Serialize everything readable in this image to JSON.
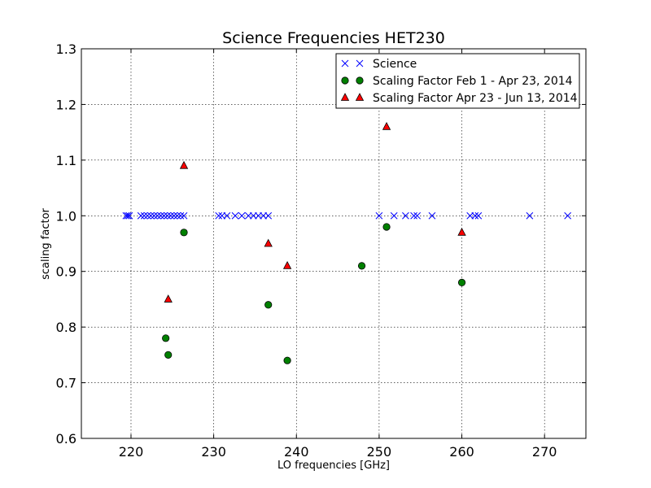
{
  "chart_data": {
    "type": "scatter",
    "title": "Science Frequencies HET230",
    "xlabel": "LO frequencies [GHz]",
    "ylabel": "scaling factor",
    "xlim": [
      214,
      275
    ],
    "ylim": [
      0.6,
      1.3
    ],
    "xticks": [
      220,
      230,
      240,
      250,
      260,
      270
    ],
    "yticks": [
      0.6,
      0.7,
      0.8,
      0.9,
      1.0,
      1.1,
      1.2,
      1.3
    ],
    "xtick_labels": [
      "220",
      "230",
      "240",
      "250",
      "260",
      "270"
    ],
    "ytick_labels": [
      "0.6",
      "0.7",
      "0.8",
      "0.9",
      "1.0",
      "1.1",
      "1.2",
      "1.3"
    ],
    "grid": true,
    "legend_position": "top-right",
    "series": [
      {
        "name": "Science",
        "marker": "x",
        "color": "#0000ff",
        "x": [
          219.4,
          219.6,
          219.8,
          221.2,
          221.6,
          222.0,
          222.4,
          222.8,
          223.2,
          223.6,
          224.0,
          224.4,
          224.8,
          225.2,
          225.6,
          226.0,
          226.4,
          230.6,
          231.0,
          231.6,
          232.6,
          233.4,
          234.2,
          234.8,
          235.4,
          236.0,
          236.6,
          250.0,
          251.8,
          253.2,
          254.2,
          254.6,
          256.4,
          261.0,
          261.6,
          262.0,
          268.2,
          272.8
        ],
        "y": [
          1.0,
          1.0,
          1.0,
          1.0,
          1.0,
          1.0,
          1.0,
          1.0,
          1.0,
          1.0,
          1.0,
          1.0,
          1.0,
          1.0,
          1.0,
          1.0,
          1.0,
          1.0,
          1.0,
          1.0,
          1.0,
          1.0,
          1.0,
          1.0,
          1.0,
          1.0,
          1.0,
          1.0,
          1.0,
          1.0,
          1.0,
          1.0,
          1.0,
          1.0,
          1.0,
          1.0,
          1.0,
          1.0
        ]
      },
      {
        "name": "Scaling Factor Feb 1 - Apr 23, 2014",
        "marker": "circle",
        "color": "#008000",
        "x": [
          224.2,
          224.5,
          226.4,
          236.6,
          238.9,
          247.9,
          250.9,
          260.0
        ],
        "y": [
          0.78,
          0.75,
          0.97,
          0.84,
          0.74,
          0.91,
          0.98,
          0.88
        ]
      },
      {
        "name": "Scaling Factor Apr 23 - Jun 13, 2014",
        "marker": "triangle",
        "color": "#ff0000",
        "x": [
          224.5,
          226.4,
          236.6,
          238.9,
          250.9,
          260.0
        ],
        "y": [
          0.85,
          1.09,
          0.95,
          0.91,
          1.16,
          0.97
        ]
      }
    ]
  }
}
